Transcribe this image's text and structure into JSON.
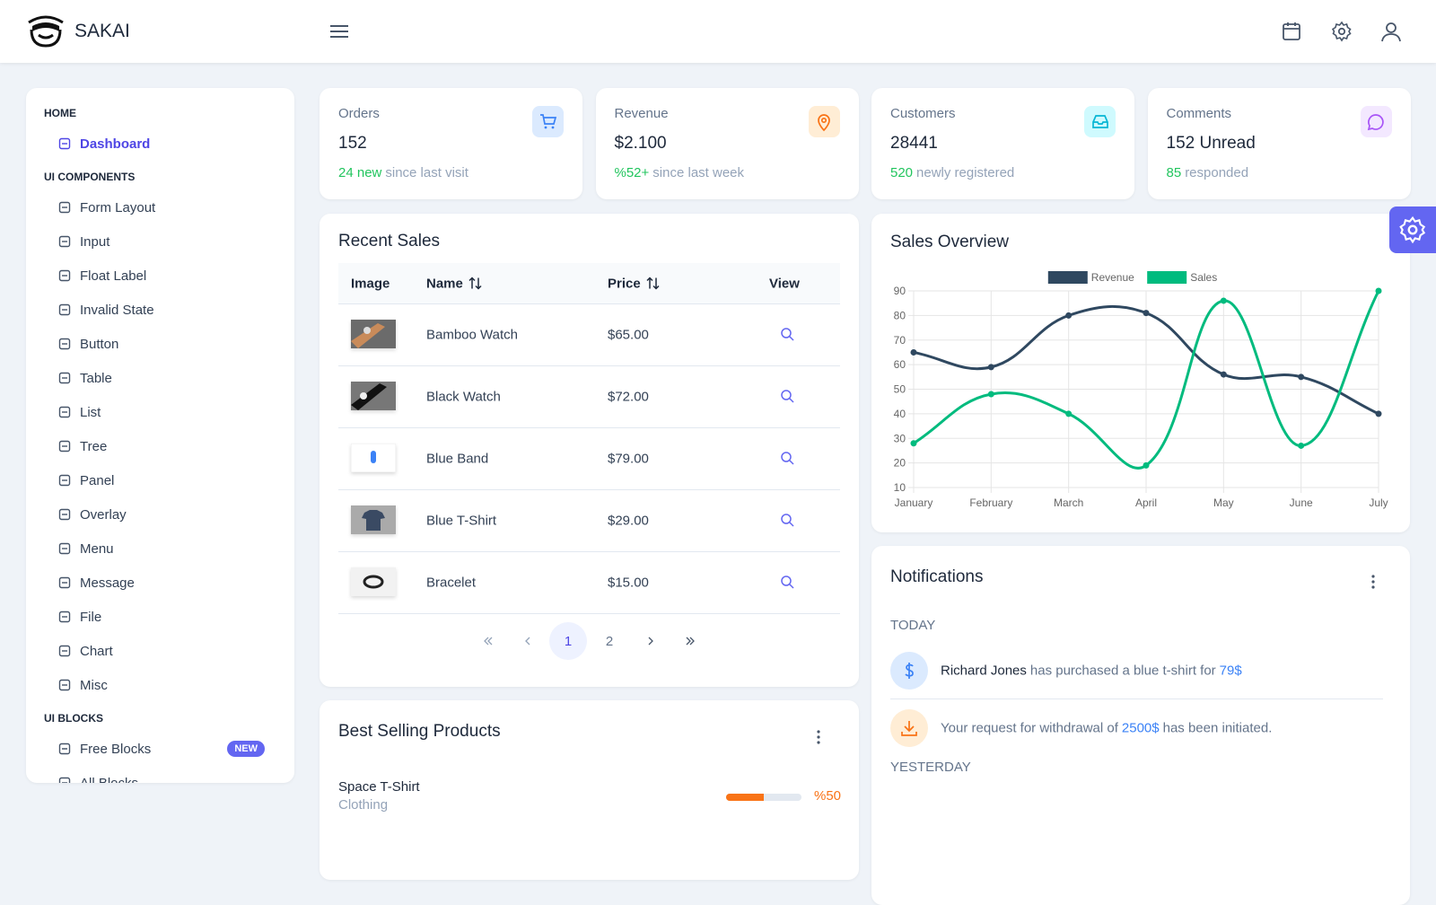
{
  "topbar": {
    "brand": "SAKAI"
  },
  "menu": {
    "sections": [
      {
        "title": "HOME",
        "items": [
          {
            "label": "Dashboard"
          }
        ]
      },
      {
        "title": "UI COMPONENTS",
        "items": [
          {
            "label": "Form Layout"
          },
          {
            "label": "Input"
          },
          {
            "label": "Float Label"
          },
          {
            "label": "Invalid State"
          },
          {
            "label": "Button"
          },
          {
            "label": "Table"
          },
          {
            "label": "List"
          },
          {
            "label": "Tree"
          },
          {
            "label": "Panel"
          },
          {
            "label": "Overlay"
          },
          {
            "label": "Menu"
          },
          {
            "label": "Message"
          },
          {
            "label": "File"
          },
          {
            "label": "Chart"
          },
          {
            "label": "Misc"
          }
        ]
      },
      {
        "title": "UI BLOCKS",
        "items": [
          {
            "label": "Free Blocks",
            "badge": "NEW"
          },
          {
            "label": "All Blocks"
          }
        ]
      }
    ]
  },
  "stats": [
    {
      "label": "Orders",
      "value": "152",
      "highlight": "24 new",
      "note": "since last visit"
    },
    {
      "label": "Revenue",
      "value": "$2.100",
      "highlight": "%52+",
      "note": "since last week"
    },
    {
      "label": "Customers",
      "value": "28441",
      "highlight": "520",
      "note": "newly registered"
    },
    {
      "label": "Comments",
      "value": "152 Unread",
      "highlight": "85",
      "note": "responded"
    }
  ],
  "recent_sales": {
    "title": "Recent Sales",
    "columns": [
      "Image",
      "Name",
      "Price",
      "View"
    ],
    "rows": [
      {
        "name": "Bamboo Watch",
        "price": "$65.00"
      },
      {
        "name": "Black Watch",
        "price": "$72.00"
      },
      {
        "name": "Blue Band",
        "price": "$79.00"
      },
      {
        "name": "Blue T-Shirt",
        "price": "$29.00"
      },
      {
        "name": "Bracelet",
        "price": "$15.00"
      }
    ],
    "pages": [
      "1",
      "2"
    ]
  },
  "best_selling": {
    "title": "Best Selling Products",
    "items": [
      {
        "name": "Space T-Shirt",
        "category": "Clothing",
        "percent": 50,
        "percent_label": "%50"
      }
    ]
  },
  "chart_data": {
    "type": "line",
    "title": "Sales Overview",
    "categories": [
      "January",
      "February",
      "March",
      "April",
      "May",
      "June",
      "July"
    ],
    "series": [
      {
        "name": "Revenue",
        "color": "#2f4860",
        "values": [
          65,
          59,
          80,
          81,
          56,
          55,
          40
        ]
      },
      {
        "name": "Sales",
        "color": "#00bb7e",
        "values": [
          28,
          48,
          40,
          19,
          86,
          27,
          90
        ]
      }
    ],
    "ylim": [
      10,
      90
    ],
    "yticks": [
      10,
      20,
      30,
      40,
      50,
      60,
      70,
      80,
      90
    ],
    "grid": true,
    "legend": "top"
  },
  "notifications": {
    "title": "Notifications",
    "groups": [
      {
        "title": "TODAY",
        "items": [
          {
            "name": "Richard Jones",
            "text": "has purchased a blue t-shirt for",
            "amount": "79$"
          },
          {
            "text": "Your request for withdrawal of",
            "amount": "2500$",
            "text_after": "has been initiated."
          }
        ]
      },
      {
        "title": "YESTERDAY",
        "items": []
      }
    ]
  }
}
